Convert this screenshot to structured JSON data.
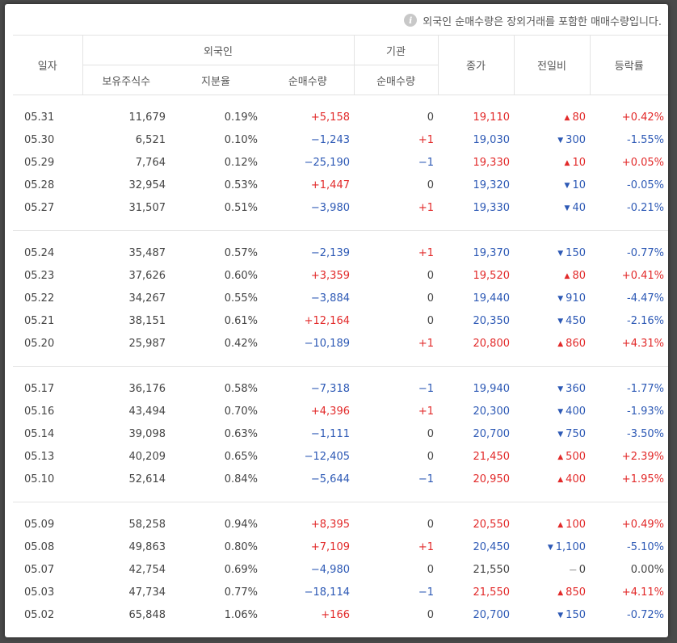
{
  "notice": {
    "icon": "info-icon",
    "text": "외국인 순매수량은 장외거래를 포함한 매매수량입니다."
  },
  "headers": {
    "date": "일자",
    "foreign": "외국인",
    "institution": "기관",
    "close": "종가",
    "change": "전일비",
    "rate": "등락률",
    "holdings": "보유주식수",
    "ratio": "지분율",
    "foreign_net": "순매수량",
    "inst_net": "순매수량"
  },
  "colors": {
    "up": "#e22a2a",
    "down": "#2d59b5"
  },
  "groups": [
    [
      {
        "date": "05.31",
        "holdings": "11,679",
        "ratio": "0.19%",
        "foreign_net": "+5,158",
        "inst_net": "0",
        "close": "19,110",
        "dir": "up",
        "change": "80",
        "rate": "+0.42%"
      },
      {
        "date": "05.30",
        "holdings": "6,521",
        "ratio": "0.10%",
        "foreign_net": "−1,243",
        "inst_net": "+1",
        "close": "19,030",
        "dir": "down",
        "change": "300",
        "rate": "-1.55%"
      },
      {
        "date": "05.29",
        "holdings": "7,764",
        "ratio": "0.12%",
        "foreign_net": "−25,190",
        "inst_net": "−1",
        "close": "19,330",
        "dir": "up",
        "change": "10",
        "rate": "+0.05%"
      },
      {
        "date": "05.28",
        "holdings": "32,954",
        "ratio": "0.53%",
        "foreign_net": "+1,447",
        "inst_net": "0",
        "close": "19,320",
        "dir": "down",
        "change": "10",
        "rate": "-0.05%"
      },
      {
        "date": "05.27",
        "holdings": "31,507",
        "ratio": "0.51%",
        "foreign_net": "−3,980",
        "inst_net": "+1",
        "close": "19,330",
        "dir": "down",
        "change": "40",
        "rate": "-0.21%"
      }
    ],
    [
      {
        "date": "05.24",
        "holdings": "35,487",
        "ratio": "0.57%",
        "foreign_net": "−2,139",
        "inst_net": "+1",
        "close": "19,370",
        "dir": "down",
        "change": "150",
        "rate": "-0.77%"
      },
      {
        "date": "05.23",
        "holdings": "37,626",
        "ratio": "0.60%",
        "foreign_net": "+3,359",
        "inst_net": "0",
        "close": "19,520",
        "dir": "up",
        "change": "80",
        "rate": "+0.41%"
      },
      {
        "date": "05.22",
        "holdings": "34,267",
        "ratio": "0.55%",
        "foreign_net": "−3,884",
        "inst_net": "0",
        "close": "19,440",
        "dir": "down",
        "change": "910",
        "rate": "-4.47%"
      },
      {
        "date": "05.21",
        "holdings": "38,151",
        "ratio": "0.61%",
        "foreign_net": "+12,164",
        "inst_net": "0",
        "close": "20,350",
        "dir": "down",
        "change": "450",
        "rate": "-2.16%"
      },
      {
        "date": "05.20",
        "holdings": "25,987",
        "ratio": "0.42%",
        "foreign_net": "−10,189",
        "inst_net": "+1",
        "close": "20,800",
        "dir": "up",
        "change": "860",
        "rate": "+4.31%"
      }
    ],
    [
      {
        "date": "05.17",
        "holdings": "36,176",
        "ratio": "0.58%",
        "foreign_net": "−7,318",
        "inst_net": "−1",
        "close": "19,940",
        "dir": "down",
        "change": "360",
        "rate": "-1.77%"
      },
      {
        "date": "05.16",
        "holdings": "43,494",
        "ratio": "0.70%",
        "foreign_net": "+4,396",
        "inst_net": "+1",
        "close": "20,300",
        "dir": "down",
        "change": "400",
        "rate": "-1.93%"
      },
      {
        "date": "05.14",
        "holdings": "39,098",
        "ratio": "0.63%",
        "foreign_net": "−1,111",
        "inst_net": "0",
        "close": "20,700",
        "dir": "down",
        "change": "750",
        "rate": "-3.50%"
      },
      {
        "date": "05.13",
        "holdings": "40,209",
        "ratio": "0.65%",
        "foreign_net": "−12,405",
        "inst_net": "0",
        "close": "21,450",
        "dir": "up",
        "change": "500",
        "rate": "+2.39%"
      },
      {
        "date": "05.10",
        "holdings": "52,614",
        "ratio": "0.84%",
        "foreign_net": "−5,644",
        "inst_net": "−1",
        "close": "20,950",
        "dir": "up",
        "change": "400",
        "rate": "+1.95%"
      }
    ],
    [
      {
        "date": "05.09",
        "holdings": "58,258",
        "ratio": "0.94%",
        "foreign_net": "+8,395",
        "inst_net": "0",
        "close": "20,550",
        "dir": "up",
        "change": "100",
        "rate": "+0.49%"
      },
      {
        "date": "05.08",
        "holdings": "49,863",
        "ratio": "0.80%",
        "foreign_net": "+7,109",
        "inst_net": "+1",
        "close": "20,450",
        "dir": "down",
        "change": "1,100",
        "rate": "-5.10%"
      },
      {
        "date": "05.07",
        "holdings": "42,754",
        "ratio": "0.69%",
        "foreign_net": "−4,980",
        "inst_net": "0",
        "close": "21,550",
        "dir": "flat",
        "change": "0",
        "rate": "0.00%"
      },
      {
        "date": "05.03",
        "holdings": "47,734",
        "ratio": "0.77%",
        "foreign_net": "−18,114",
        "inst_net": "−1",
        "close": "21,550",
        "dir": "up",
        "change": "850",
        "rate": "+4.11%"
      },
      {
        "date": "05.02",
        "holdings": "65,848",
        "ratio": "1.06%",
        "foreign_net": "+166",
        "inst_net": "0",
        "close": "20,700",
        "dir": "down",
        "change": "150",
        "rate": "-0.72%"
      }
    ]
  ]
}
